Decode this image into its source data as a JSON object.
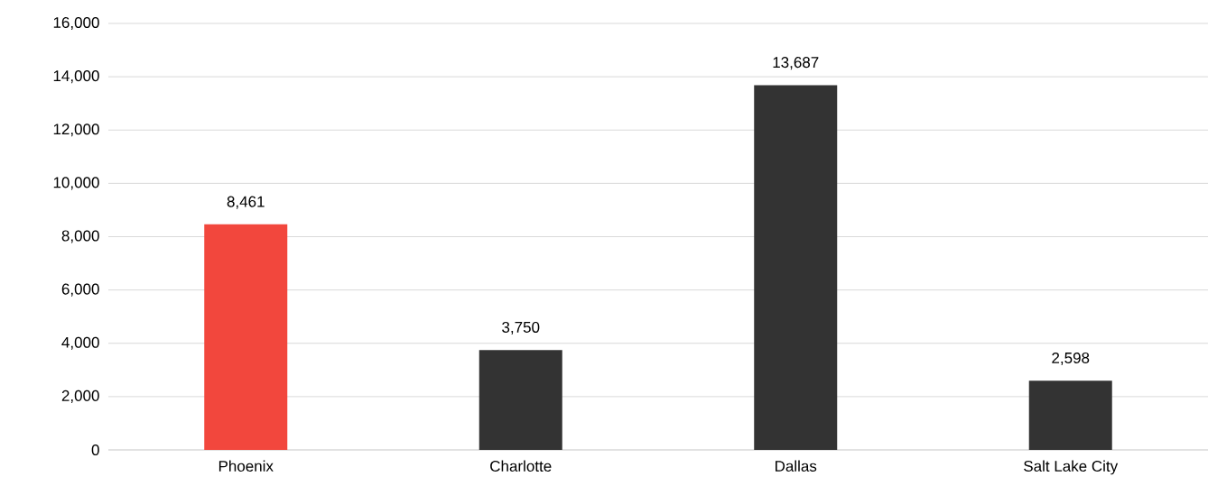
{
  "chart_data": {
    "type": "bar",
    "categories": [
      "Phoenix",
      "Charlotte",
      "Dallas",
      "Salt Lake City"
    ],
    "values": [
      8461,
      3750,
      13687,
      2598
    ],
    "colors": [
      "#f2473d",
      "#333333",
      "#333333",
      "#333333"
    ],
    "value_labels": [
      "8,461",
      "3,750",
      "13,687",
      "2,598"
    ],
    "ylim": [
      0,
      16000
    ],
    "yticks": [
      {
        "value": 0,
        "label": "0"
      },
      {
        "value": 2000,
        "label": "2,000"
      },
      {
        "value": 4000,
        "label": "4,000"
      },
      {
        "value": 6000,
        "label": "6,000"
      },
      {
        "value": 8000,
        "label": "8,000"
      },
      {
        "value": 10000,
        "label": "10,000"
      },
      {
        "value": 12000,
        "label": "12,000"
      },
      {
        "value": 14000,
        "label": "14,000"
      },
      {
        "value": 16000,
        "label": "16,000"
      }
    ],
    "grid": "y"
  }
}
